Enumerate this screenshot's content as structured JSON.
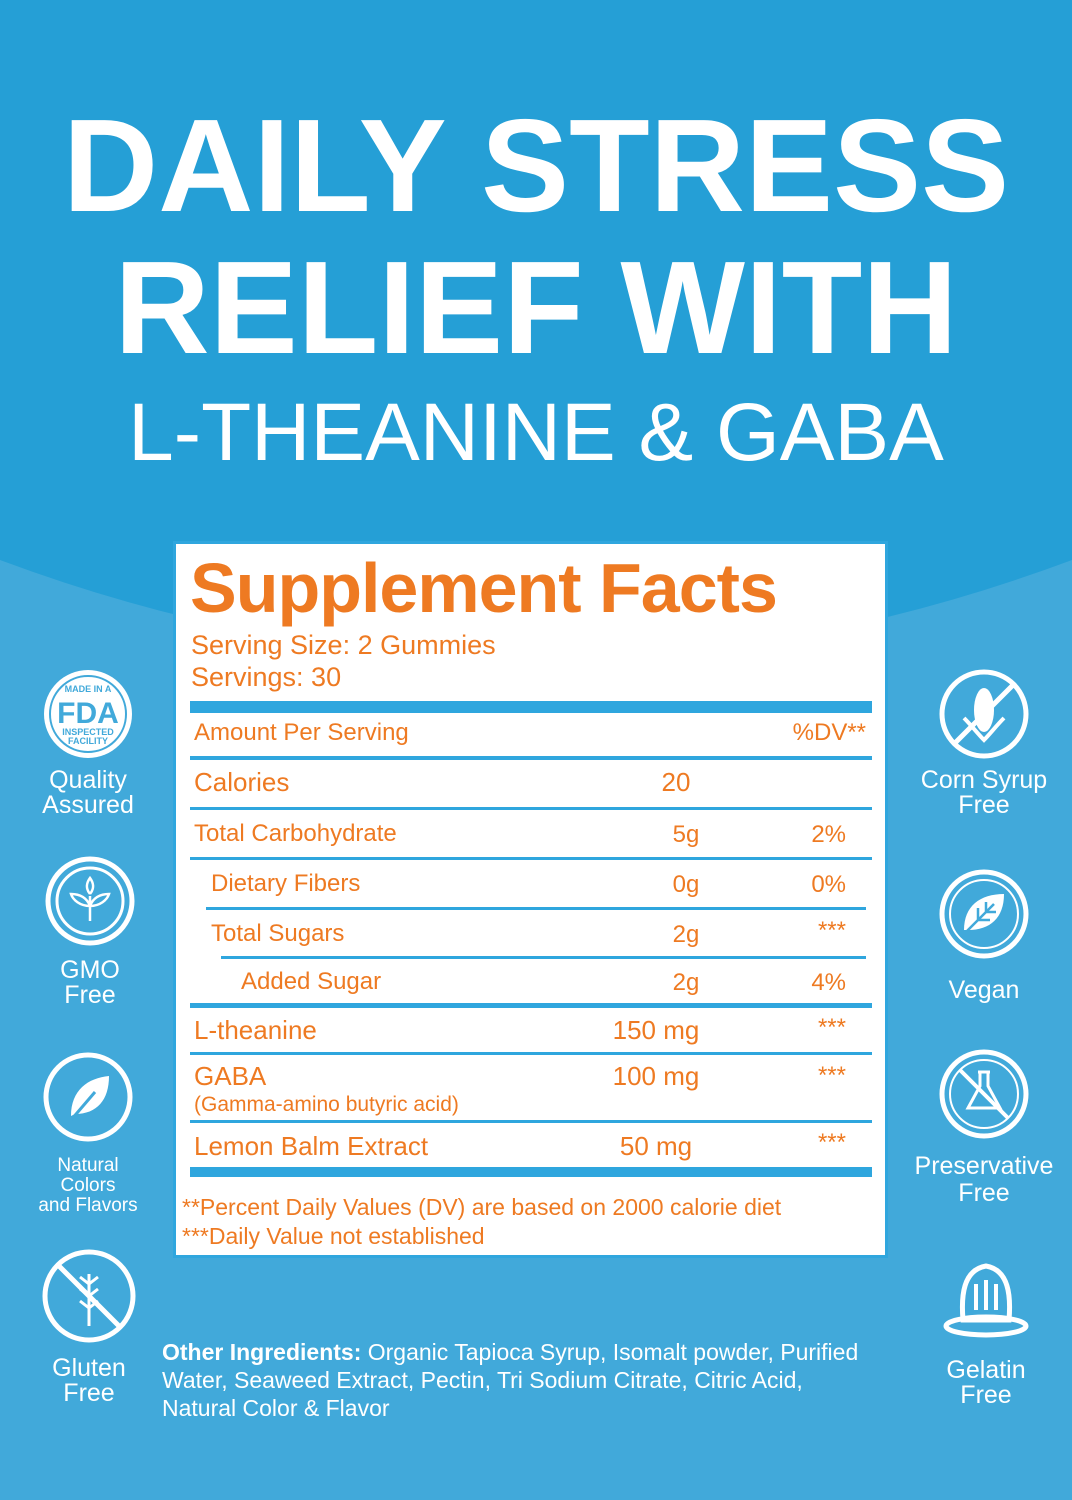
{
  "headline": {
    "line1": "DAILY STRESS",
    "line2": "RELIEF WITH",
    "line3": "L-THEANINE & GABA"
  },
  "colors": {
    "top_band": "#259fd6",
    "background": "#41a9da",
    "accent_orange": "#ee7a22",
    "rule_blue": "#2fa6de"
  },
  "facts": {
    "title": "Supplement Facts",
    "serving_size": "Serving Size: 2 Gummies",
    "servings": "Servings: 30",
    "header": {
      "amount": "Amount Per Serving",
      "dv": "%DV**"
    },
    "rows": [
      {
        "name": "Calories",
        "amount": "20",
        "dv": ""
      },
      {
        "name": "Total Carbohydrate",
        "amount": "5g",
        "dv": "2%"
      },
      {
        "name": "Dietary Fibers",
        "amount": "0g",
        "dv": "0%"
      },
      {
        "name": "Total Sugars",
        "amount": "2g",
        "dv": "***"
      },
      {
        "name": "Added Sugar",
        "amount": "2g",
        "dv": "4%"
      },
      {
        "name": "L-theanine",
        "amount": "150 mg",
        "dv": "***"
      },
      {
        "name": "GABA",
        "sub": "(Gamma-amino butyric acid)",
        "amount": "100 mg",
        "dv": "***"
      },
      {
        "name": "Lemon Balm Extract",
        "amount": "50 mg",
        "dv": "***"
      }
    ],
    "footnote1": "**Percent Daily Values (DV) are based on 2000 calorie diet",
    "footnote2": "***Daily Value not established"
  },
  "badges_left": [
    {
      "icon": "fda-seal-icon",
      "seal_text": [
        "MADE IN A",
        "FDA",
        "INSPECTED",
        "FACILITY"
      ],
      "label1": "Quality",
      "label2": "Assured"
    },
    {
      "icon": "gmo-free-icon",
      "label1": "GMO",
      "label2": "Free"
    },
    {
      "icon": "leaf-icon",
      "label1": "Natural",
      "label2": "Colors",
      "label3": "and Flavors"
    },
    {
      "icon": "gluten-free-icon",
      "label1": "Gluten",
      "label2": "Free"
    }
  ],
  "badges_right": [
    {
      "icon": "corn-syrup-free-icon",
      "label1": "Corn Syrup",
      "label2": "Free"
    },
    {
      "icon": "vegan-leaf-icon",
      "label1": "Vegan"
    },
    {
      "icon": "preservative-free-icon",
      "label1": "Preservative",
      "label2": "Free"
    },
    {
      "icon": "gelatin-free-icon",
      "label1": "Gelatin",
      "label2": "Free"
    }
  ],
  "ingredients": {
    "label": "Other Ingredients:",
    "text": " Organic Tapioca Syrup, Isomalt powder, Purified Water, Seaweed Extract, Pectin, Tri Sodium Citrate, Citric Acid, Natural Color & Flavor"
  }
}
